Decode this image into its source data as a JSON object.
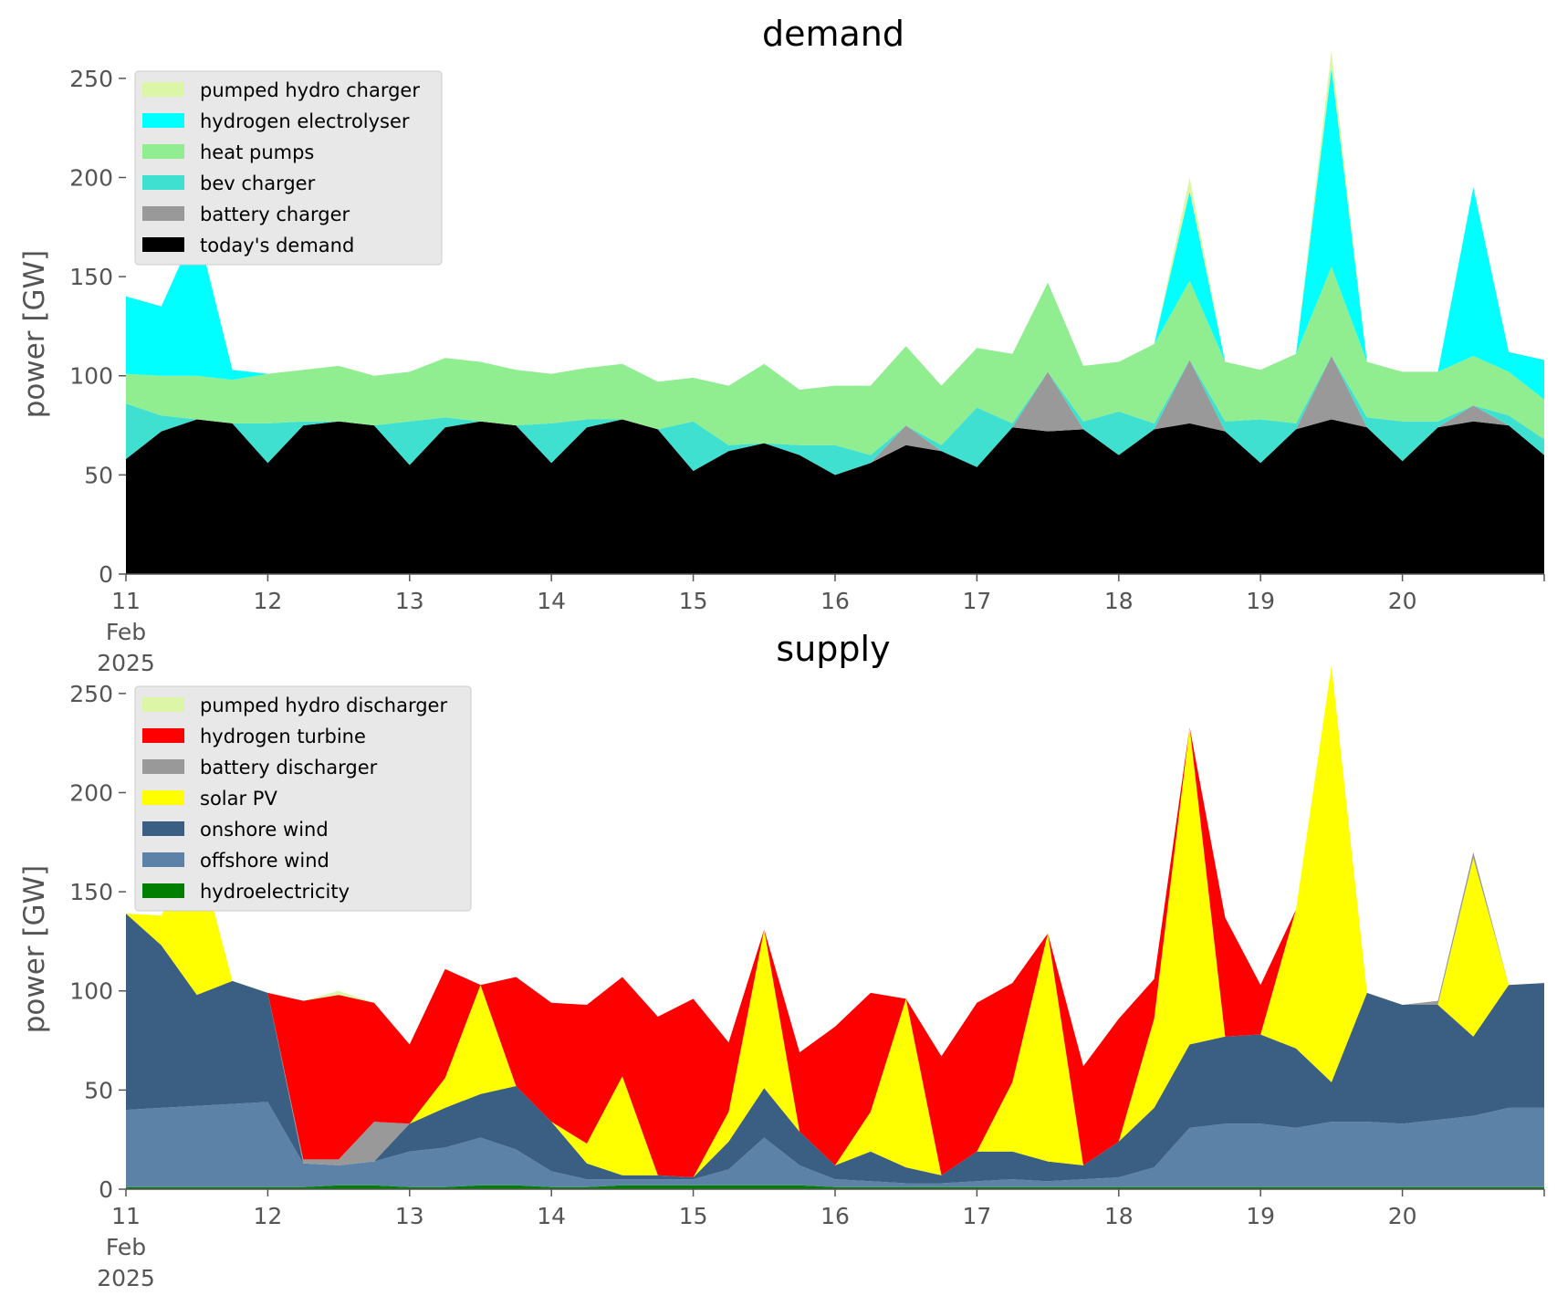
{
  "colors": {
    "pumped_hydro": "#ddf5a6",
    "hydrogen_electrolyser": "#00ffff",
    "heat_pumps": "#90ee90",
    "bev_charger": "#40e0d0",
    "battery": "#999999",
    "todays_demand": "#000000",
    "hydrogen_turbine": "#ff0000",
    "solar_pv": "#ffff00",
    "onshore_wind": "#3b5f82",
    "offshore_wind": "#5c82a8",
    "hydroelectricity": "#008000",
    "legend_bg": "#e8e8e8"
  },
  "chart_data": [
    {
      "type": "area",
      "stacked": true,
      "title": "demand",
      "ylabel": "power [GW]",
      "xlabel": "",
      "xlim": [
        0,
        10
      ],
      "ylim": [
        0,
        255
      ],
      "x_tick_values": [
        0,
        1,
        2,
        3,
        4,
        5,
        6,
        7,
        8,
        9,
        10
      ],
      "x_tick_labels": [
        "11\nFeb\n2025",
        "12",
        "13",
        "14",
        "15",
        "16",
        "17",
        "18",
        "19",
        "20",
        ""
      ],
      "y_tick_values": [
        0,
        50,
        100,
        150,
        200,
        250
      ],
      "y_tick_labels": [
        "0",
        "50",
        "100",
        "150",
        "200",
        "250"
      ],
      "grid": false,
      "legend_position": "top-left",
      "legend": [
        "pumped hydro charger",
        "hydrogen electrolyser",
        "heat pumps",
        "bev charger",
        "battery charger",
        "today's demand"
      ],
      "x_days_since_feb_11": [
        0.0,
        0.25,
        0.5,
        0.75,
        1.0,
        1.25,
        1.5,
        1.75,
        2.0,
        2.25,
        2.5,
        2.75,
        3.0,
        3.25,
        3.5,
        3.75,
        4.0,
        4.25,
        4.5,
        4.75,
        5.0,
        5.25,
        5.5,
        5.75,
        6.0,
        6.25,
        6.5,
        6.75,
        7.0,
        7.25,
        7.5,
        7.75,
        8.0,
        8.25,
        8.5,
        8.75,
        9.0,
        9.25,
        9.5,
        9.75,
        10.0
      ],
      "series": [
        {
          "name": "today's demand",
          "color_key": "todays_demand",
          "values": [
            58,
            72,
            78,
            76,
            56,
            75,
            77,
            75,
            55,
            74,
            77,
            75,
            56,
            74,
            78,
            73,
            52,
            62,
            66,
            60,
            50,
            56,
            65,
            62,
            54,
            74,
            72,
            73,
            60,
            73,
            76,
            72,
            56,
            73,
            78,
            74,
            57,
            74,
            77,
            75,
            60
          ]
        },
        {
          "name": "battery charger",
          "color_key": "battery",
          "values": [
            0,
            0,
            0,
            0,
            0,
            0,
            0,
            0,
            0,
            0,
            0,
            0,
            0,
            0,
            0,
            0,
            0,
            0,
            0,
            0,
            0,
            0,
            10,
            0,
            0,
            0,
            30,
            0,
            0,
            0,
            32,
            0,
            0,
            0,
            32,
            0,
            0,
            0,
            8,
            0,
            0
          ]
        },
        {
          "name": "bev charger",
          "color_key": "bev_charger",
          "values": [
            28,
            8,
            0,
            0,
            20,
            2,
            0,
            0,
            22,
            5,
            0,
            0,
            20,
            4,
            0,
            0,
            25,
            3,
            0,
            5,
            15,
            4,
            0,
            3,
            30,
            2,
            0,
            4,
            22,
            3,
            0,
            5,
            22,
            3,
            0,
            5,
            20,
            3,
            0,
            5,
            8
          ]
        },
        {
          "name": "heat pumps",
          "color_key": "heat_pumps",
          "values": [
            15,
            20,
            22,
            22,
            25,
            26,
            28,
            25,
            25,
            30,
            30,
            28,
            25,
            26,
            28,
            24,
            22,
            30,
            40,
            28,
            30,
            35,
            40,
            30,
            30,
            35,
            45,
            28,
            25,
            40,
            40,
            30,
            25,
            35,
            45,
            28,
            25,
            25,
            25,
            22,
            20
          ]
        },
        {
          "name": "hydrogen electrolyser",
          "color_key": "hydrogen_electrolyser",
          "values": [
            39,
            35,
            75,
            5,
            0,
            0,
            0,
            0,
            0,
            0,
            0,
            0,
            0,
            0,
            0,
            0,
            0,
            0,
            0,
            0,
            0,
            0,
            0,
            0,
            0,
            0,
            0,
            0,
            0,
            0,
            45,
            0,
            0,
            0,
            100,
            0,
            0,
            0,
            85,
            10,
            20
          ]
        },
        {
          "name": "pumped hydro charger",
          "color_key": "pumped_hydro",
          "values": [
            0,
            0,
            0,
            0,
            0,
            0,
            0,
            0,
            0,
            0,
            0,
            0,
            0,
            0,
            0,
            0,
            0,
            0,
            0,
            0,
            0,
            0,
            0,
            0,
            0,
            0,
            0,
            0,
            0,
            0,
            7,
            0,
            0,
            0,
            9,
            0,
            0,
            0,
            0,
            0,
            0
          ]
        }
      ]
    },
    {
      "type": "area",
      "stacked": true,
      "title": "supply",
      "ylabel": "power [GW]",
      "xlabel": "",
      "xlim": [
        0,
        10
      ],
      "ylim": [
        0,
        255
      ],
      "x_tick_values": [
        0,
        1,
        2,
        3,
        4,
        5,
        6,
        7,
        8,
        9,
        10
      ],
      "x_tick_labels": [
        "11\nFeb\n2025",
        "12",
        "13",
        "14",
        "15",
        "16",
        "17",
        "18",
        "19",
        "20",
        ""
      ],
      "y_tick_values": [
        0,
        50,
        100,
        150,
        200,
        250
      ],
      "y_tick_labels": [
        "0",
        "50",
        "100",
        "150",
        "200",
        "250"
      ],
      "grid": false,
      "legend_position": "top-left",
      "legend": [
        "pumped hydro discharger",
        "hydrogen turbine",
        "battery discharger",
        "solar PV",
        "onshore wind",
        "offshore wind",
        "hydroelectricity"
      ],
      "x_days_since_feb_11": [
        0.0,
        0.25,
        0.5,
        0.75,
        1.0,
        1.25,
        1.5,
        1.75,
        2.0,
        2.25,
        2.5,
        2.75,
        3.0,
        3.25,
        3.5,
        3.75,
        4.0,
        4.25,
        4.5,
        4.75,
        5.0,
        5.25,
        5.5,
        5.75,
        6.0,
        6.25,
        6.5,
        6.75,
        7.0,
        7.25,
        7.5,
        7.75,
        8.0,
        8.25,
        8.5,
        8.75,
        9.0,
        9.25,
        9.5,
        9.75,
        10.0
      ],
      "series": [
        {
          "name": "hydroelectricity",
          "color_key": "hydroelectricity",
          "values": [
            1,
            1,
            1,
            1,
            1,
            1,
            2,
            2,
            1,
            1,
            2,
            2,
            1,
            1,
            2,
            2,
            2,
            2,
            2,
            2,
            1,
            1,
            1,
            1,
            1,
            1,
            1,
            1,
            1,
            1,
            1,
            1,
            1,
            1,
            1,
            1,
            1,
            1,
            1,
            1,
            1
          ]
        },
        {
          "name": "offshore wind",
          "color_key": "offshore_wind",
          "values": [
            39,
            40,
            41,
            42,
            43,
            12,
            10,
            12,
            18,
            20,
            24,
            18,
            8,
            4,
            3,
            3,
            3,
            8,
            24,
            10,
            4,
            3,
            2,
            2,
            3,
            4,
            3,
            4,
            5,
            10,
            30,
            32,
            32,
            30,
            33,
            33,
            32,
            34,
            36,
            40,
            40
          ]
        },
        {
          "name": "onshore wind",
          "color_key": "onshore_wind",
          "values": [
            99,
            82,
            56,
            62,
            55,
            0,
            0,
            0,
            14,
            20,
            22,
            32,
            25,
            8,
            2,
            2,
            1,
            14,
            25,
            17,
            7,
            15,
            8,
            4,
            15,
            14,
            10,
            7,
            18,
            30,
            42,
            44,
            45,
            40,
            20,
            65,
            60,
            58,
            40,
            62,
            63
          ]
        },
        {
          "name": "solar PV",
          "color_key": "solar_pv",
          "values": [
            0,
            15,
            75,
            0,
            0,
            0,
            0,
            0,
            0,
            15,
            55,
            0,
            0,
            10,
            50,
            0,
            0,
            15,
            80,
            0,
            0,
            20,
            85,
            0,
            0,
            35,
            115,
            0,
            0,
            45,
            160,
            0,
            0,
            70,
            210,
            0,
            0,
            0,
            90,
            0,
            0
          ]
        },
        {
          "name": "battery discharger",
          "color_key": "battery",
          "values": [
            0,
            0,
            0,
            0,
            0,
            2,
            3,
            20,
            0,
            0,
            0,
            0,
            0,
            0,
            0,
            0,
            0,
            0,
            0,
            0,
            0,
            0,
            0,
            0,
            0,
            0,
            0,
            0,
            0,
            0,
            0,
            0,
            0,
            0,
            0,
            0,
            0,
            2,
            3,
            0,
            0
          ]
        },
        {
          "name": "hydrogen turbine",
          "color_key": "hydrogen_turbine",
          "values": [
            0,
            0,
            0,
            0,
            0,
            80,
            83,
            60,
            40,
            55,
            0,
            55,
            60,
            70,
            50,
            80,
            90,
            35,
            0,
            40,
            70,
            60,
            0,
            60,
            75,
            50,
            0,
            50,
            62,
            20,
            0,
            60,
            25,
            0,
            0,
            0,
            0,
            0,
            0,
            0,
            0
          ]
        },
        {
          "name": "pumped hydro discharger",
          "color_key": "pumped_hydro",
          "values": [
            0,
            0,
            0,
            0,
            0,
            0,
            2,
            0,
            0,
            0,
            0,
            0,
            0,
            0,
            0,
            0,
            0,
            0,
            0,
            0,
            0,
            0,
            0,
            0,
            0,
            0,
            0,
            0,
            0,
            0,
            0,
            0,
            0,
            0,
            0,
            0,
            0,
            0,
            0,
            0,
            0
          ]
        }
      ]
    }
  ]
}
